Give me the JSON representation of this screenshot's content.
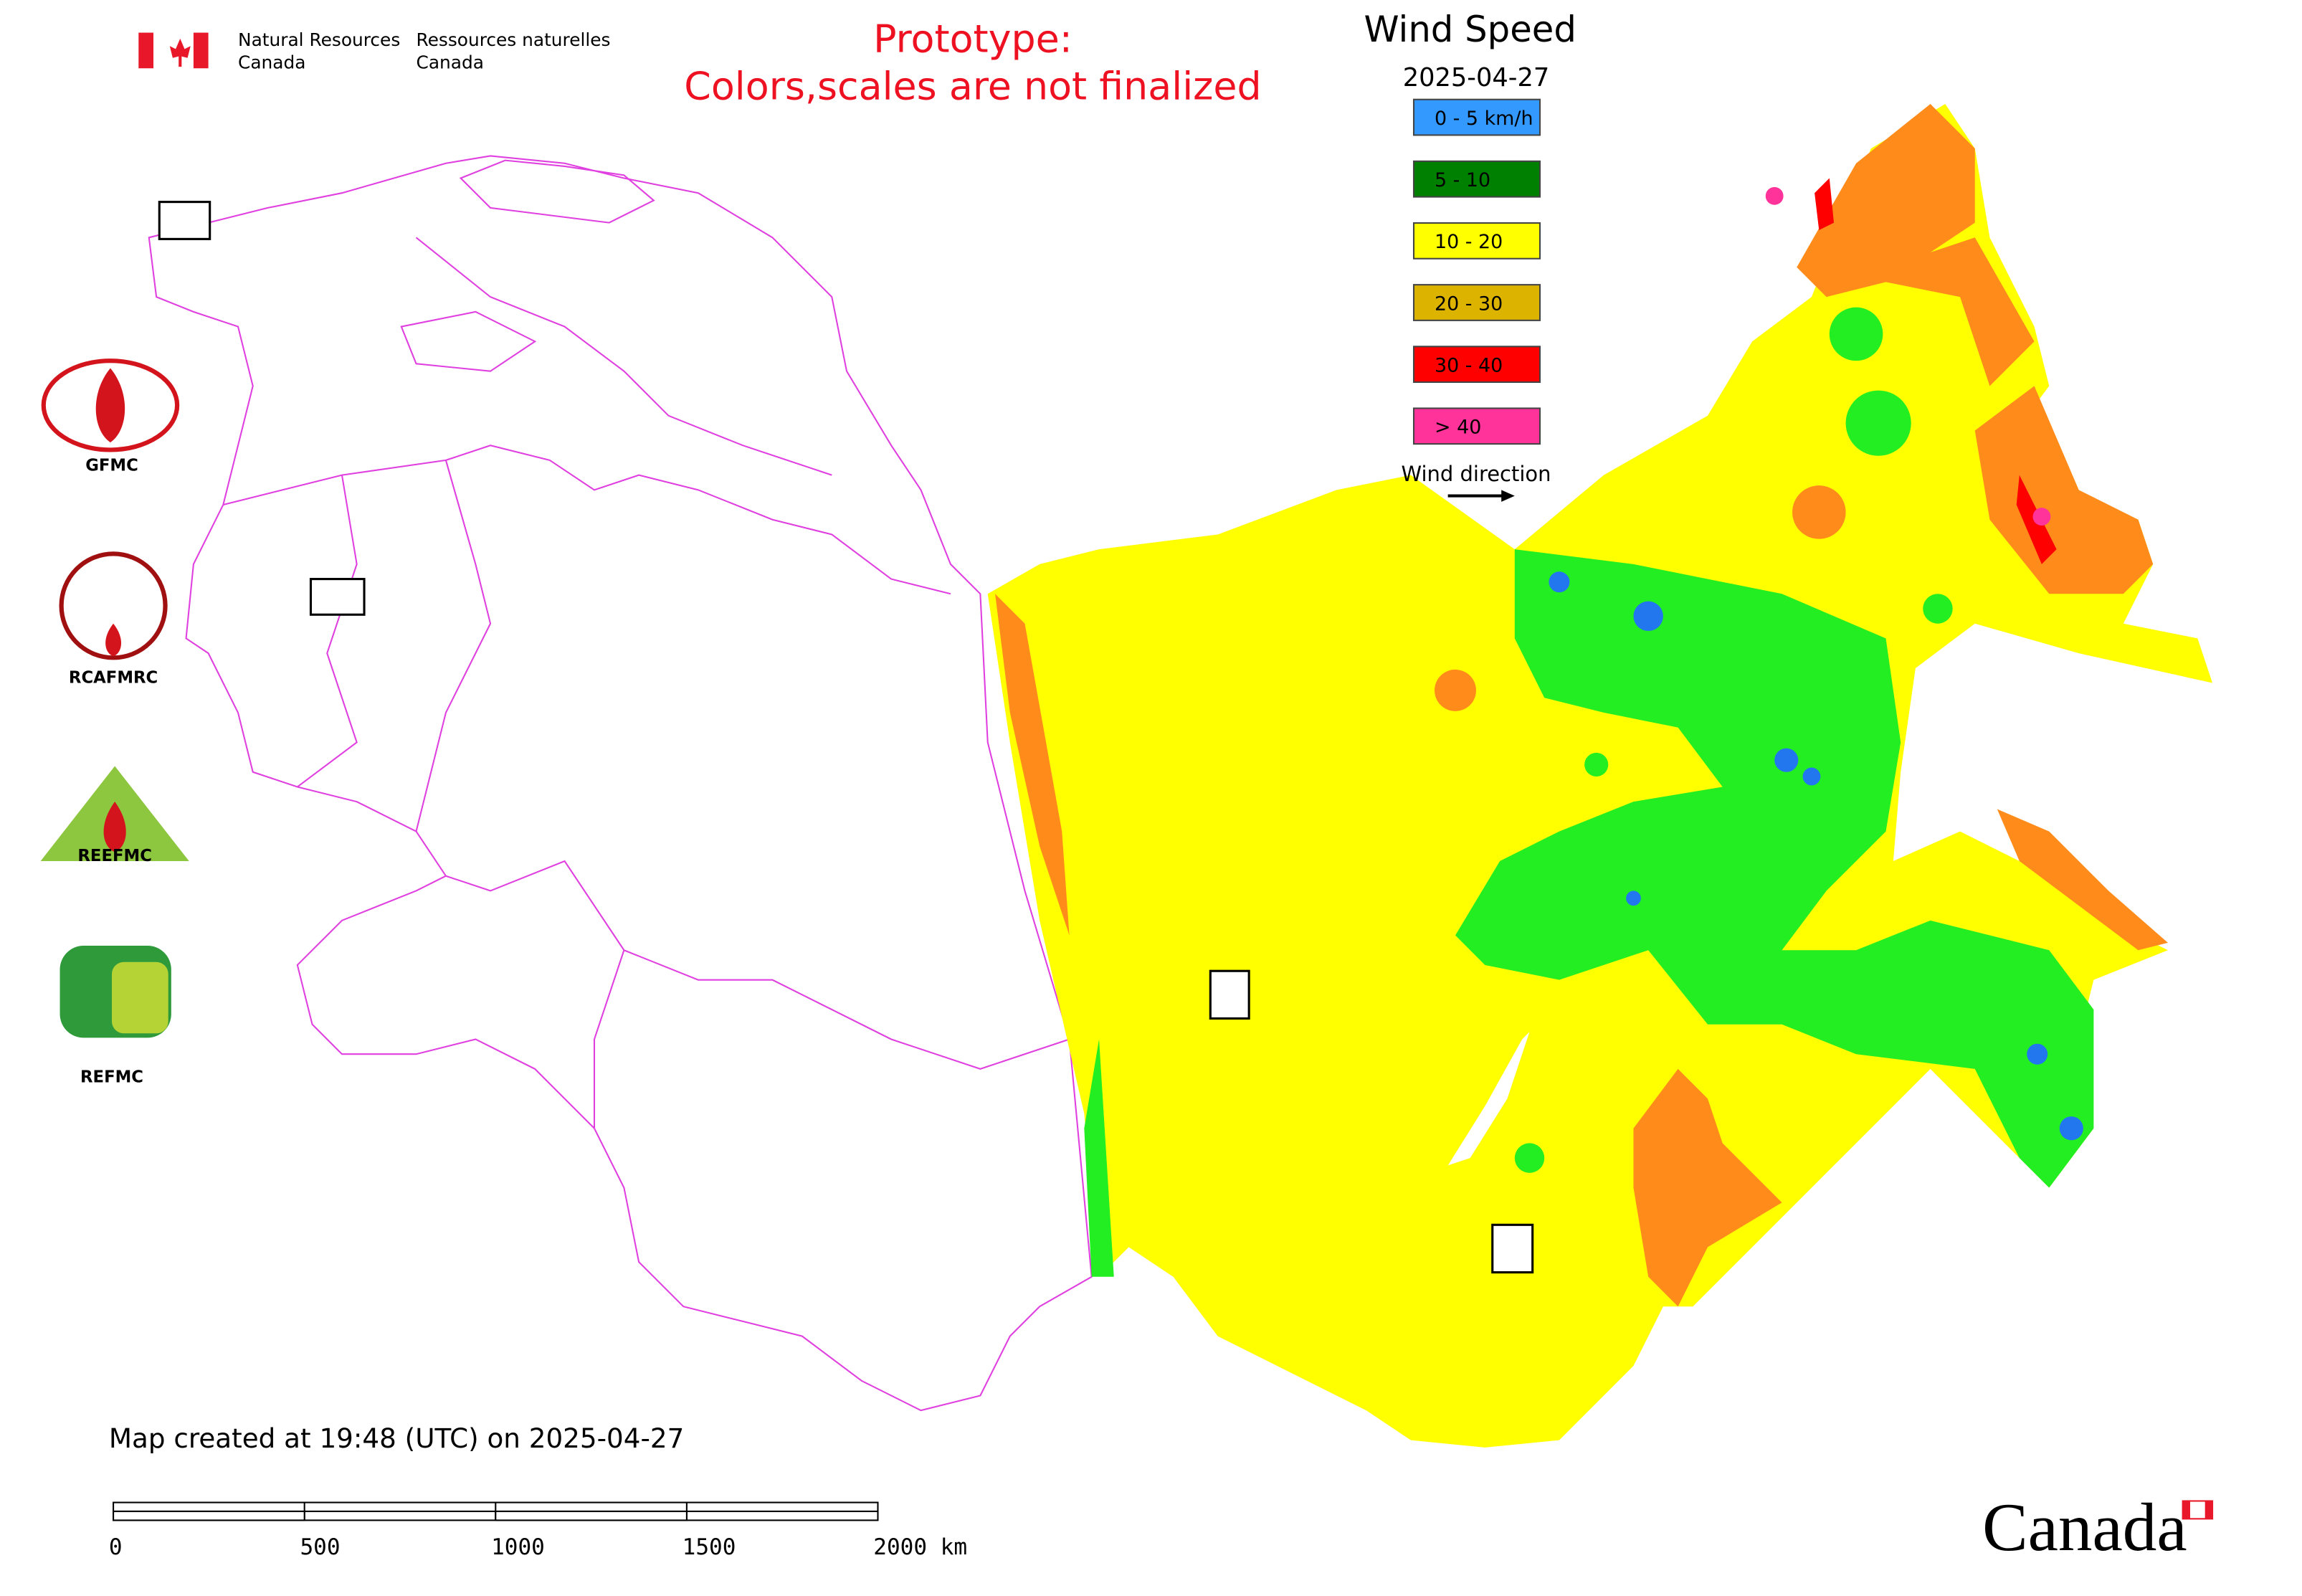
{
  "header": {
    "agency_en": {
      "line1": "Natural Resources",
      "line2": "Canada"
    },
    "agency_fr": {
      "line1": "Ressources naturelles",
      "line2": "Canada"
    }
  },
  "notice": {
    "line1": "Prototype:",
    "line2": "Colors,scales are not finalized"
  },
  "legend": {
    "title": "Wind Speed",
    "date": "2025-04-27",
    "items": [
      {
        "label": "0 - 5 km/h",
        "color": "#3399ff"
      },
      {
        "label": "5 - 10",
        "color": "#008000"
      },
      {
        "label": "10 - 20",
        "color": "#ffff00"
      },
      {
        "label": "20 - 30",
        "color": "#dcb400"
      },
      {
        "label": "30 - 40",
        "color": "#ff0000"
      },
      {
        "label": "> 40",
        "color": "#ff3399"
      }
    ],
    "wind_direction": "Wind direction"
  },
  "logos": [
    "GFMC",
    "RCAFMRC",
    "REEFMC",
    "REFMC"
  ],
  "footer": {
    "created": "Map created at 19:48 (UTC) on 2025-04-27",
    "scale_labels": [
      "0",
      "500",
      "1000",
      "1500",
      "2000 km"
    ],
    "wordmark": "Canada"
  }
}
